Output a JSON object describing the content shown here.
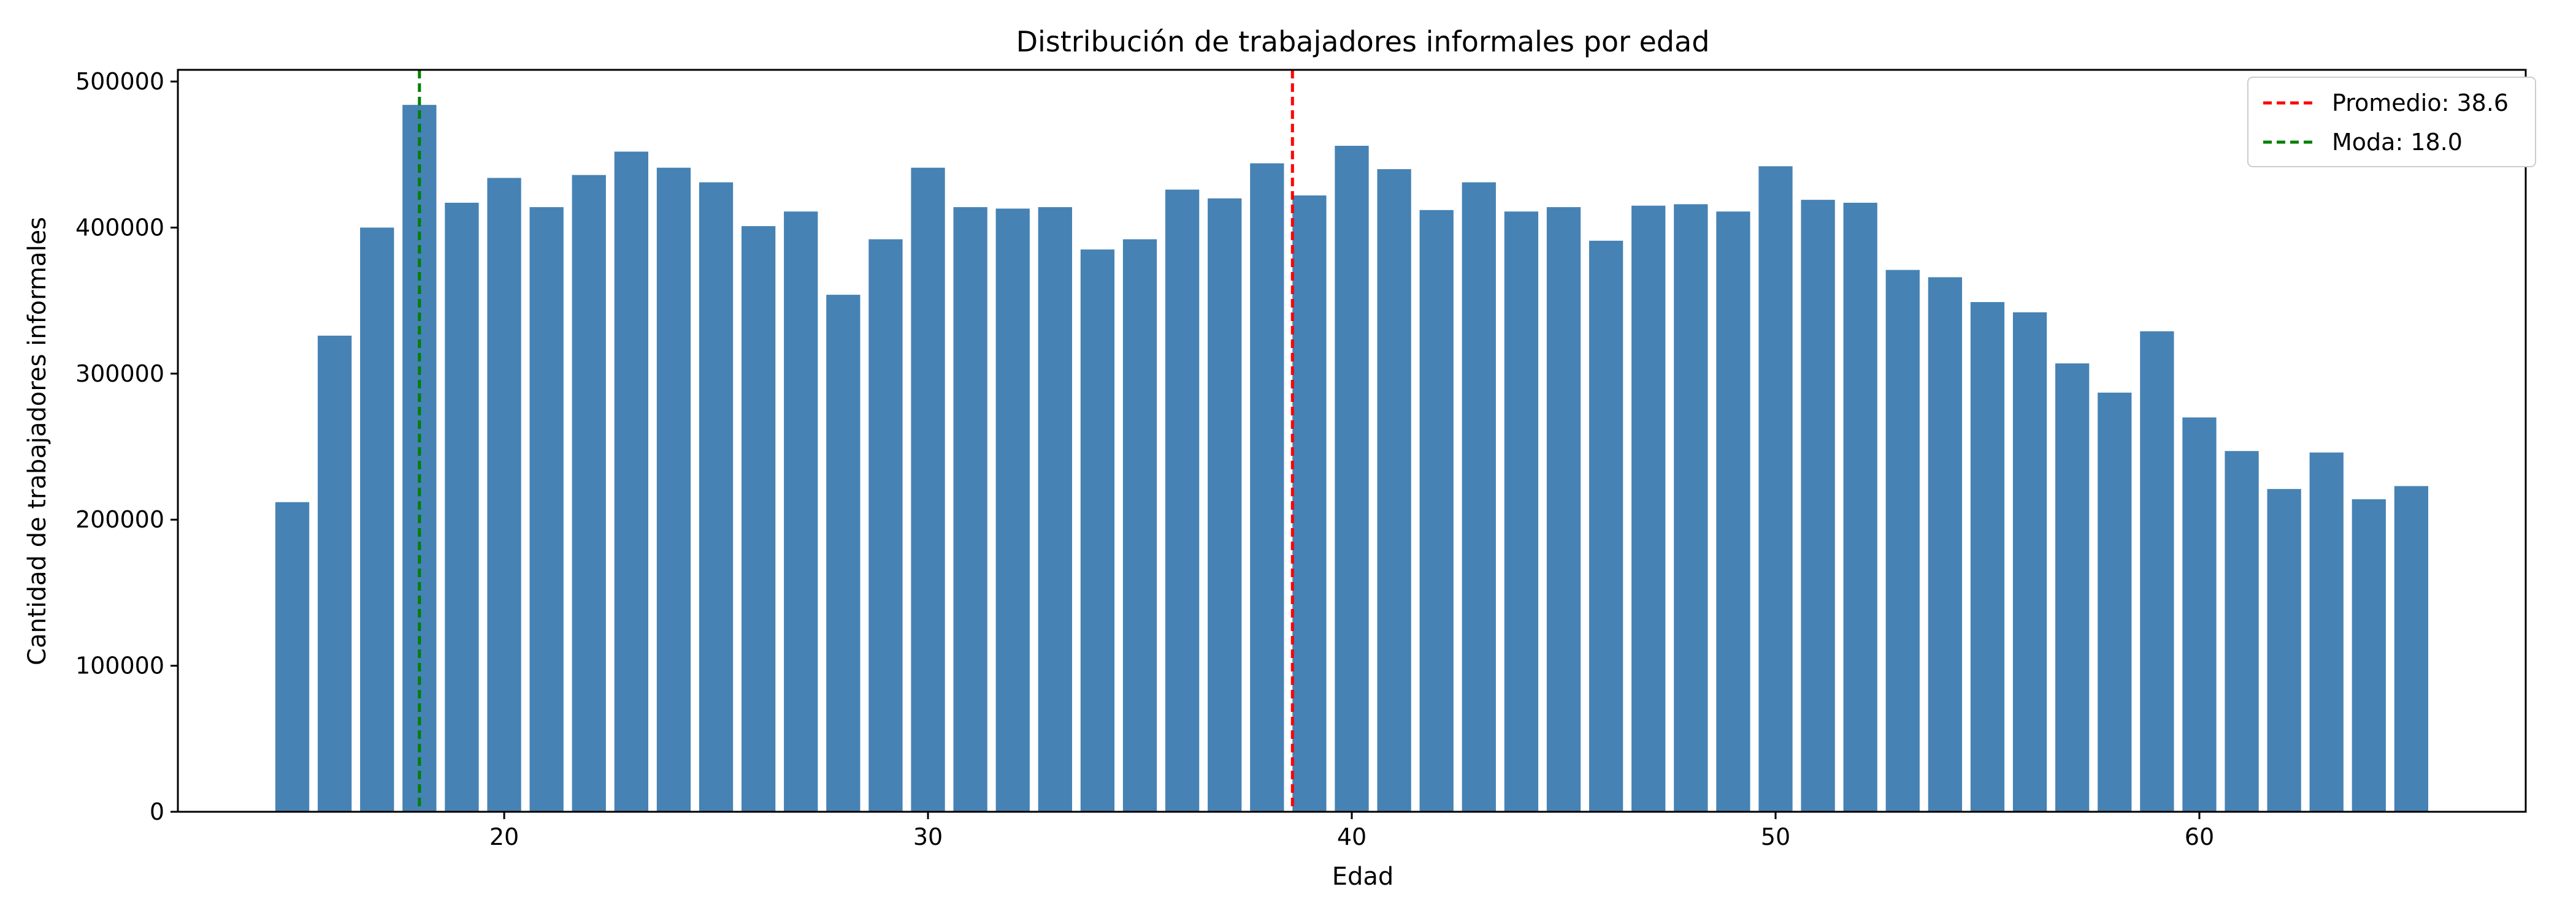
{
  "chart_data": {
    "type": "bar",
    "title": "Distribución de trabajadores informales por edad",
    "xlabel": "Edad",
    "ylabel": "Cantidad de trabajadores informales",
    "xlim": [
      12.3,
      67.7
    ],
    "ylim": [
      0,
      508000
    ],
    "xticks": [
      20,
      30,
      40,
      50,
      60
    ],
    "yticks": [
      0,
      100000,
      200000,
      300000,
      400000,
      500000
    ],
    "grid": false,
    "legend_position": "top-right",
    "bar_color": "#4682B4",
    "x": [
      15,
      16,
      17,
      18,
      19,
      20,
      21,
      22,
      23,
      24,
      25,
      26,
      27,
      28,
      29,
      30,
      31,
      32,
      33,
      34,
      35,
      36,
      37,
      38,
      39,
      40,
      41,
      42,
      43,
      44,
      45,
      46,
      47,
      48,
      49,
      50,
      51,
      52,
      53,
      54,
      55,
      56,
      57,
      58,
      59,
      60,
      61,
      62,
      63,
      64,
      65
    ],
    "values": [
      212000,
      326000,
      400000,
      484000,
      417000,
      434000,
      414000,
      436000,
      452000,
      441000,
      431000,
      401000,
      411000,
      354000,
      392000,
      441000,
      414000,
      413000,
      414000,
      385000,
      392000,
      426000,
      420000,
      444000,
      422000,
      456000,
      440000,
      412000,
      431000,
      411000,
      414000,
      391000,
      415000,
      416000,
      411000,
      442000,
      419000,
      417000,
      371000,
      366000,
      349000,
      342000,
      307000,
      287000,
      329000,
      270000,
      247000,
      221000,
      246000,
      214000,
      223000
    ],
    "reference_lines": [
      {
        "name": "Promedio: 38.6",
        "x": 38.6,
        "color": "#FF0000",
        "style": "dashed"
      },
      {
        "name": "Moda: 18.0",
        "x": 18.0,
        "color": "#008000",
        "style": "dashed"
      }
    ]
  }
}
